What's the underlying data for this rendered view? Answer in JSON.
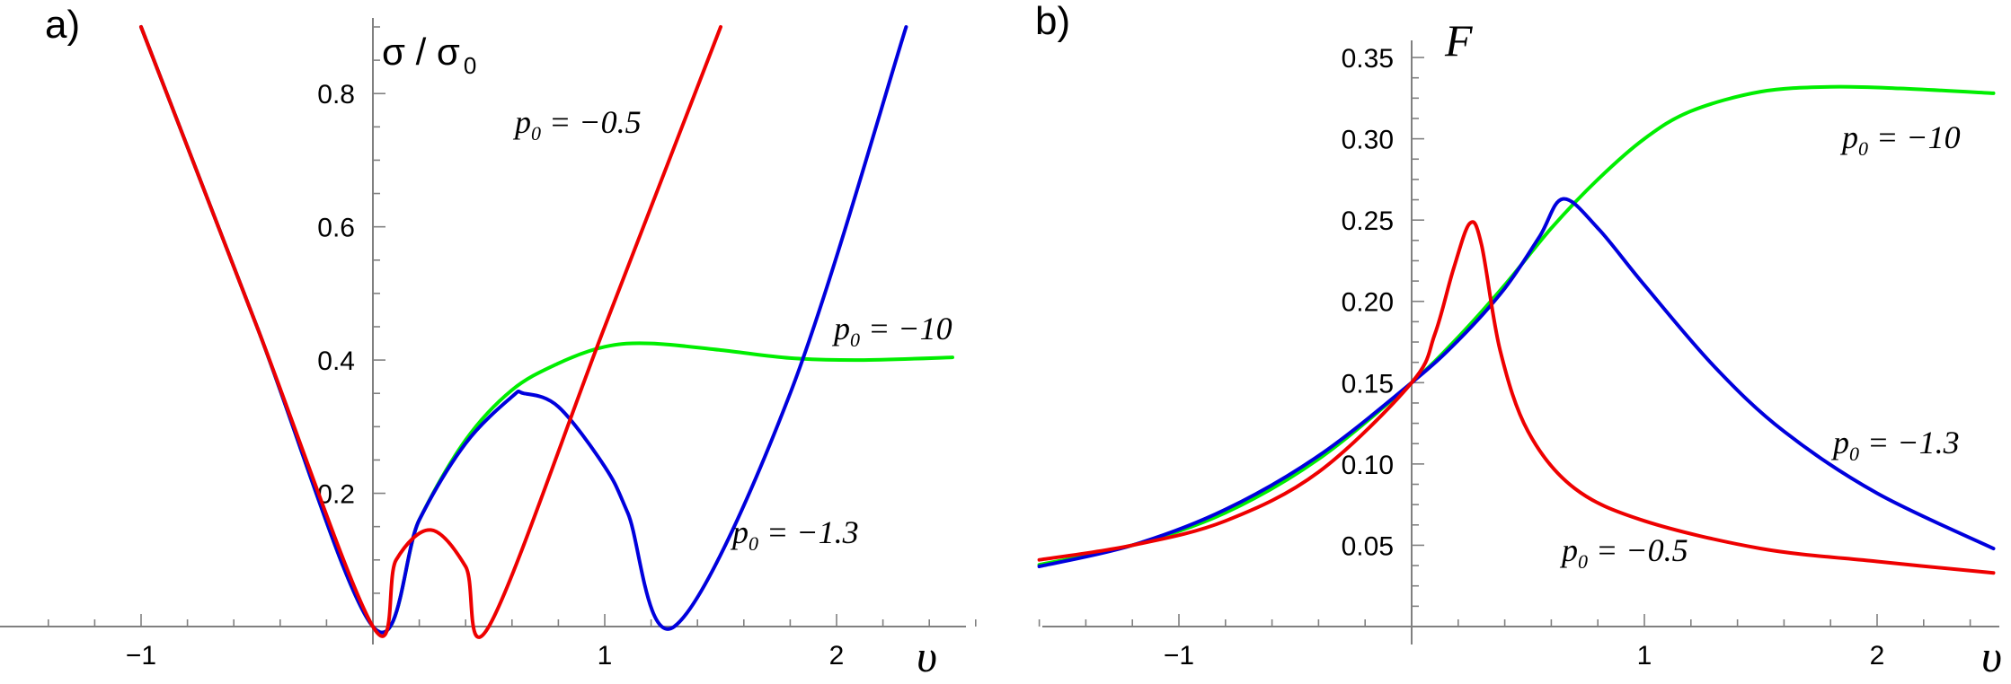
{
  "chart_data": [
    {
      "type": "line",
      "panel_label": "a)",
      "title": "",
      "xlabel": "υ",
      "ylabel": "σ / σ",
      "ylabel_sub": "0",
      "xlim": [
        -1.4,
        2.6
      ],
      "ylim": [
        0,
        0.9
      ],
      "x_ticks": [
        -1,
        1,
        2
      ],
      "y_ticks": [
        0.2,
        0.4,
        0.6,
        0.8
      ],
      "y_tick_labels": [
        "0.2",
        "0.4",
        "0.6",
        "0.8"
      ],
      "grid": false,
      "annotations": [
        {
          "text": "p",
          "sub": "0",
          "rest": " = −0.5",
          "series": "red"
        },
        {
          "text": "p",
          "sub": "0",
          "rest": " = −10",
          "series": "green"
        },
        {
          "text": "p",
          "sub": "0",
          "rest": " = −1.3",
          "series": "blue"
        }
      ],
      "series": [
        {
          "color": "#00ee00",
          "x": [
            -1.0,
            -0.5,
            0.0,
            0.2,
            0.4,
            0.6,
            0.8,
            1.0,
            1.2,
            1.5,
            1.8,
            2.1,
            2.5
          ],
          "y": [
            0.9,
            0.45,
            0.0,
            0.16,
            0.28,
            0.355,
            0.395,
            0.42,
            0.425,
            0.415,
            0.403,
            0.4,
            0.404
          ]
        },
        {
          "color": "#0000dd",
          "x": [
            -1.0,
            -0.5,
            0.0,
            0.2,
            0.4,
            0.6,
            0.65,
            0.8,
            1.0,
            1.1,
            1.3,
            1.8,
            2.3
          ],
          "y": [
            0.9,
            0.45,
            0.0,
            0.16,
            0.275,
            0.345,
            0.35,
            0.33,
            0.24,
            0.17,
            0.0,
            0.35,
            0.9
          ]
        },
        {
          "color": "#ee0000",
          "x": [
            -1.0,
            -0.5,
            0.0,
            0.1,
            0.25,
            0.4,
            0.5,
            1.0,
            1.5
          ],
          "y": [
            0.9,
            0.45,
            0.0,
            0.1,
            0.145,
            0.09,
            0.0,
            0.45,
            0.9
          ]
        }
      ]
    },
    {
      "type": "line",
      "panel_label": "b)",
      "title": "",
      "xlabel": "υ",
      "ylabel": "F",
      "xlim": [
        -1.6,
        2.5
      ],
      "ylim": [
        0,
        0.355
      ],
      "x_ticks": [
        -1,
        1,
        2
      ],
      "y_ticks": [
        0.05,
        0.1,
        0.15,
        0.2,
        0.25,
        0.3,
        0.35
      ],
      "y_tick_labels": [
        "0.05",
        "0.10",
        "0.15",
        "0.20",
        "0.25",
        "0.30",
        "0.35"
      ],
      "grid": false,
      "annotations": [
        {
          "text": "p",
          "sub": "0",
          "rest": " = −10",
          "series": "green"
        },
        {
          "text": "p",
          "sub": "0",
          "rest": " = −1.3",
          "series": "blue"
        },
        {
          "text": "p",
          "sub": "0",
          "rest": " = −0.5",
          "series": "red"
        }
      ],
      "series": [
        {
          "color": "#00ee00",
          "x": [
            -1.6,
            -1.2,
            -0.8,
            -0.4,
            0.0,
            0.2,
            0.4,
            0.6,
            0.8,
            1.0,
            1.2,
            1.5,
            1.8,
            2.1,
            2.5
          ],
          "y": [
            0.038,
            0.05,
            0.07,
            0.103,
            0.15,
            0.178,
            0.21,
            0.245,
            0.275,
            0.3,
            0.317,
            0.329,
            0.332,
            0.331,
            0.328
          ]
        },
        {
          "color": "#0000dd",
          "x": [
            -1.6,
            -1.2,
            -0.8,
            -0.4,
            0.0,
            0.2,
            0.4,
            0.55,
            0.65,
            0.8,
            1.0,
            1.3,
            1.6,
            2.0,
            2.5
          ],
          "y": [
            0.037,
            0.05,
            0.072,
            0.105,
            0.15,
            0.176,
            0.208,
            0.24,
            0.263,
            0.245,
            0.21,
            0.16,
            0.12,
            0.082,
            0.048
          ]
        },
        {
          "color": "#ee0000",
          "x": [
            -1.6,
            -1.2,
            -0.8,
            -0.4,
            0.0,
            0.1,
            0.18,
            0.25,
            0.3,
            0.38,
            0.5,
            0.7,
            1.0,
            1.5,
            2.0,
            2.5
          ],
          "y": [
            0.041,
            0.05,
            0.065,
            0.095,
            0.15,
            0.18,
            0.22,
            0.248,
            0.235,
            0.17,
            0.12,
            0.085,
            0.065,
            0.048,
            0.04,
            0.033
          ]
        }
      ]
    }
  ]
}
